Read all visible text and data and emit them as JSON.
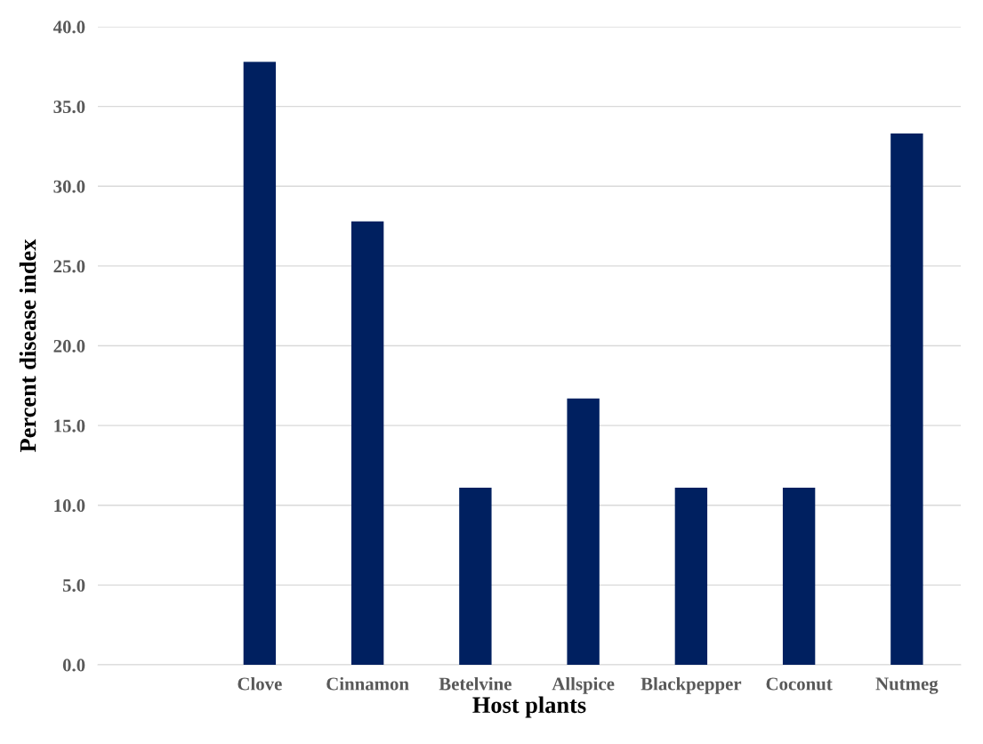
{
  "chart_data": {
    "type": "bar",
    "xlabel": "Host plants",
    "ylabel": "Percent disease index",
    "categories": [
      null,
      "Clove",
      "Cinnamon",
      "Betelvine",
      "Allspice",
      "Blackpepper",
      "Coconut",
      "Nutmeg"
    ],
    "values": [
      null,
      37.8,
      27.8,
      11.1,
      16.7,
      11.1,
      11.1,
      33.3
    ],
    "color": "#002060",
    "ylim": [
      0,
      40
    ],
    "yticks": [
      {
        "value": 0,
        "label": "0.0"
      },
      {
        "value": 5,
        "label": "5.0"
      },
      {
        "value": 10,
        "label": "10.0"
      },
      {
        "value": 15,
        "label": "15.0"
      },
      {
        "value": 20,
        "label": "20.0"
      },
      {
        "value": 25,
        "label": "25.0"
      },
      {
        "value": 30,
        "label": "30.0"
      },
      {
        "value": 35,
        "label": "35.0"
      },
      {
        "value": 40,
        "label": "40.0"
      }
    ],
    "grid": "y"
  }
}
